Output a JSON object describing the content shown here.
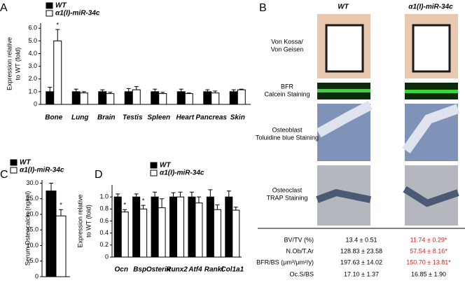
{
  "chart_data": [
    {
      "type": "bar",
      "panel_label": "A",
      "ylabel": [
        "Expression relative",
        "to WT (fold)"
      ],
      "categories": [
        "Bone",
        "Lung",
        "Brain",
        "Testis",
        "Spleen",
        "Heart",
        "Pancreas",
        "Skin"
      ],
      "series": [
        {
          "name": "WT",
          "color": "#000000",
          "values": [
            1.0,
            1.0,
            1.0,
            1.0,
            1.0,
            1.0,
            1.0,
            1.0
          ],
          "errors": [
            0.35,
            0.2,
            0.15,
            0.25,
            0.2,
            0.2,
            0.15,
            0.15
          ],
          "markers": [
            null,
            null,
            null,
            null,
            null,
            null,
            null,
            null
          ]
        },
        {
          "name": "α1(I)-miR-34c",
          "color": "#ffffff",
          "values": [
            5.0,
            0.9,
            0.85,
            1.15,
            0.85,
            0.85,
            0.9,
            1.15
          ],
          "errors": [
            0.9,
            0.1,
            0.1,
            0.25,
            0.1,
            0.05,
            0.15,
            0.05
          ],
          "markers": [
            "*",
            null,
            null,
            null,
            null,
            null,
            null,
            null
          ]
        }
      ],
      "ylim": [
        0,
        6.4
      ],
      "yticks": [
        0,
        {
          "value": 1,
          "label": "1.0"
        },
        {
          "value": 2,
          "label": "2.0"
        },
        {
          "value": 3,
          "label": "3.0"
        },
        {
          "value": 4,
          "label": "4.0"
        },
        {
          "value": 5,
          "label": "5.0"
        },
        {
          "value": 6,
          "label": "6.0"
        }
      ]
    },
    {
      "type": "bar",
      "panel_label": "C",
      "ylabel": [
        "Serum Osteocalcin (ng/ml)"
      ],
      "categories": [
        null
      ],
      "series": [
        {
          "name": "WT",
          "color": "#000000",
          "values": [
            27.5
          ],
          "errors": [
            2.5
          ],
          "markers": [
            null
          ]
        },
        {
          "name": "α1(I)-miR-34c",
          "color": "#ffffff",
          "values": [
            19.5
          ],
          "errors": [
            2
          ],
          "markers": [
            "*"
          ]
        }
      ],
      "ylim": [
        0,
        31
      ],
      "yticks": [
        0,
        {
          "value": 5,
          "label": "5.0"
        },
        {
          "value": 10,
          "label": "10.0"
        },
        {
          "value": 15,
          "label": "15.0"
        },
        {
          "value": 20,
          "label": "20.0"
        },
        {
          "value": 25,
          "label": "25.0"
        },
        {
          "value": 30,
          "label": "30.0"
        }
      ]
    },
    {
      "type": "bar",
      "panel_label": "D",
      "ylabel": [
        "Expression relative",
        "to WT (fold)"
      ],
      "categories": [
        "Ocn",
        "Bsp",
        "Osterix",
        "Runx2",
        "Atf4",
        "Rankl",
        "Col1a1"
      ],
      "series": [
        {
          "name": "WT",
          "color": "#000000",
          "values": [
            1.0,
            1.0,
            1.0,
            1.0,
            1.0,
            1.0,
            1.0
          ],
          "errors": [
            0.05,
            0.05,
            0.08,
            0.07,
            0.08,
            0.12,
            0.1
          ],
          "markers": [
            null,
            null,
            null,
            null,
            null,
            null,
            null
          ]
        },
        {
          "name": "α1(I)-miR-34c",
          "color": "#ffffff",
          "values": [
            0.75,
            0.8,
            0.82,
            1.0,
            0.9,
            0.79,
            0.78
          ],
          "errors": [
            0.04,
            0.06,
            0.15,
            0.08,
            0.1,
            0.08,
            0.05
          ],
          "markers": [
            "*",
            "*",
            null,
            null,
            null,
            null,
            null
          ]
        }
      ],
      "ylim": [
        0,
        1.2
      ],
      "yticks": [
        0,
        0.2,
        0.4,
        0.6,
        0.8,
        {
          "value": 1,
          "label": "1.0"
        }
      ]
    }
  ],
  "panel_b": {
    "label": "B",
    "columns": [
      "WT",
      "α1(I)-miR-34c"
    ],
    "rows": [
      [
        "Von Kossa/",
        "Von Geisen"
      ],
      [
        "BFR",
        "Calcein Staining"
      ],
      [
        "Osteoblast",
        "Toluidine blue Staining"
      ],
      [
        "Osteoclast",
        "TRAP Staining"
      ]
    ],
    "table": [
      [
        "BV/TV (%)",
        "13.4 ± 0.51",
        "11.74 ± 0.29*"
      ],
      [
        "N.Ob/T.Ar",
        "128.83 ± 23.58",
        "57.54 ± 8.16*"
      ],
      [
        "BFR/BS (μm³/μm²/y)",
        "197.63 ± 14.02",
        "150.70 ± 13.81*"
      ],
      [
        "Oc.S/BS",
        "17.10 ± 1.37",
        "16.85 ± 1.90"
      ]
    ]
  }
}
